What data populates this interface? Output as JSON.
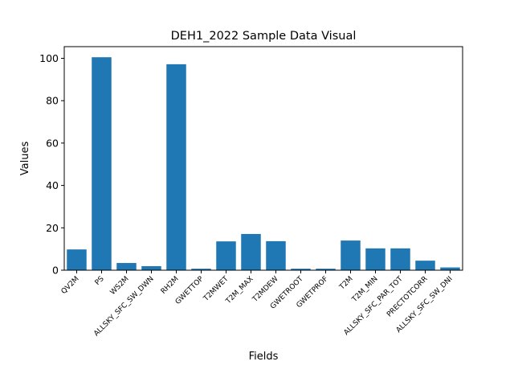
{
  "chart_data": {
    "type": "bar",
    "title": "DEH1_2022 Sample Data Visual",
    "xlabel": "Fields",
    "ylabel": "Values",
    "categories": [
      "QV2M",
      "PS",
      "WS2M",
      "ALLSKY_SFC_SW_DWN",
      "RH2M",
      "GWETTOP",
      "T2MWET",
      "T2M_MAX",
      "T2MDEW",
      "GWETROOT",
      "GWETPROF",
      "T2M",
      "T2M_MIN",
      "ALLSKY_SFC_PAR_TOT",
      "PRECTOTCORR",
      "ALLSKY_SFC_SW_DNI"
    ],
    "values": [
      9.8,
      100.5,
      3.4,
      1.9,
      97.2,
      0.7,
      13.6,
      17.1,
      13.7,
      0.7,
      0.7,
      14.0,
      10.3,
      10.3,
      4.5,
      1.3
    ],
    "ylim": [
      0,
      105.5
    ],
    "yticks": [
      0,
      20,
      40,
      60,
      80,
      100
    ],
    "bar_color": "#1f77b4",
    "grid": false,
    "legend": "none"
  }
}
